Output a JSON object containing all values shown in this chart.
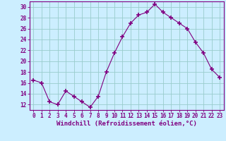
{
  "x": [
    0,
    1,
    2,
    3,
    4,
    5,
    6,
    7,
    8,
    9,
    10,
    11,
    12,
    13,
    14,
    15,
    16,
    17,
    18,
    19,
    20,
    21,
    22,
    23
  ],
  "y": [
    16.5,
    16.0,
    12.5,
    12.0,
    14.5,
    13.5,
    12.5,
    11.5,
    13.5,
    18.0,
    21.5,
    24.5,
    27.0,
    28.5,
    29.0,
    30.5,
    29.0,
    28.0,
    27.0,
    26.0,
    23.5,
    21.5,
    18.5,
    17.0
  ],
  "line_color": "#800080",
  "marker": "+",
  "marker_size": 4,
  "bg_color": "#cceeff",
  "grid_color": "#99cccc",
  "xlabel": "Windchill (Refroidissement éolien,°C)",
  "xlim_min": -0.5,
  "xlim_max": 23.5,
  "ylim_min": 11,
  "ylim_max": 31,
  "yticks": [
    12,
    14,
    16,
    18,
    20,
    22,
    24,
    26,
    28,
    30
  ],
  "xtick_labels": [
    "0",
    "1",
    "2",
    "3",
    "4",
    "5",
    "6",
    "7",
    "8",
    "9",
    "10",
    "11",
    "12",
    "13",
    "14",
    "15",
    "16",
    "17",
    "18",
    "19",
    "20",
    "21",
    "22",
    "23"
  ],
  "tick_color": "#800080",
  "label_fontsize": 6.5,
  "tick_fontsize": 5.5
}
